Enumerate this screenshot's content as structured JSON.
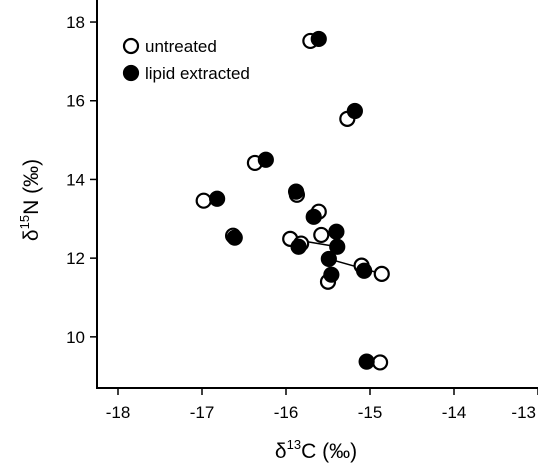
{
  "chart_data": {
    "type": "scatter",
    "x_label": {
      "symbol": "δ",
      "sup": "13",
      "rest": "C (‰)"
    },
    "y_label": {
      "symbol": "δ",
      "sup": "15",
      "rest": "N (‰)"
    },
    "xlim": [
      -18.25,
      -13.0
    ],
    "xticks": [
      -18,
      -17,
      -16,
      -15,
      -14,
      -13
    ],
    "ylim": [
      8.7,
      18.56
    ],
    "yticks": [
      10,
      12,
      14,
      16,
      18
    ],
    "legend": "top-left",
    "connect_pairs": true,
    "series": [
      {
        "name": "untreated",
        "color": "#000000",
        "marker": "open",
        "x": [
          -15.71,
          -15.27,
          -16.37,
          -16.98,
          -16.63,
          -15.87,
          -15.61,
          -15.58,
          -15.95,
          -15.82,
          -15.1,
          -14.86,
          -15.5,
          -14.88
        ],
        "values": [
          17.52,
          15.54,
          14.42,
          13.46,
          12.57,
          13.61,
          13.18,
          12.59,
          12.49,
          12.37,
          11.81,
          11.6,
          11.4,
          9.35
        ]
      },
      {
        "name": "lipid extracted",
        "color": "#000000",
        "marker": "filled",
        "x": [
          -15.61,
          -15.18,
          -16.24,
          -16.82,
          -16.61,
          -15.88,
          -15.67,
          -15.4,
          -15.39,
          -15.85,
          -15.07,
          -15.49,
          -15.46,
          -15.04
        ],
        "values": [
          17.57,
          15.74,
          14.5,
          13.51,
          12.52,
          13.69,
          13.05,
          12.67,
          12.29,
          12.29,
          11.68,
          11.98,
          11.58,
          9.37
        ]
      }
    ]
  }
}
